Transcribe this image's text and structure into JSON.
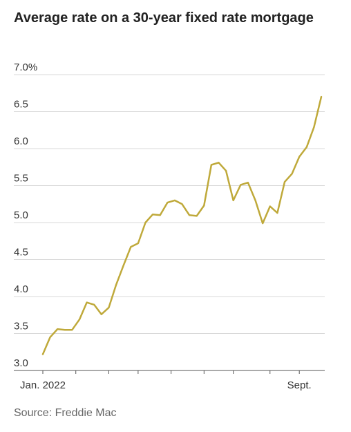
{
  "chart_data": {
    "type": "line",
    "title": "Average rate on a 30-year fixed rate mortgage",
    "source": "Source: Freddie Mac",
    "ylim": [
      3.0,
      7.0
    ],
    "y_ticks": [
      3.0,
      3.5,
      4.0,
      4.5,
      5.0,
      5.5,
      6.0,
      6.5,
      7.0
    ],
    "y_tick_labels": [
      "3.0",
      "3.5",
      "4.0",
      "4.5",
      "5.0",
      "5.5",
      "6.0",
      "6.5",
      "7.0%"
    ],
    "x_tick_labels": [
      {
        "week": 0,
        "label": "Jan. 2022"
      },
      {
        "week": 35,
        "label": "Sept."
      }
    ],
    "x_minor_ticks": [
      0,
      4.5,
      9,
      13,
      17.5,
      22,
      26,
      31,
      35
    ],
    "grid": true,
    "line_color": "#bfa93a",
    "series": [
      {
        "values": [
          3.22,
          3.45,
          3.56,
          3.55,
          3.55,
          3.69,
          3.92,
          3.89,
          3.76,
          3.85,
          4.16,
          4.42,
          4.67,
          4.72,
          5.0,
          5.11,
          5.1,
          5.27,
          5.3,
          5.25,
          5.1,
          5.09,
          5.23,
          5.78,
          5.81,
          5.7,
          5.3,
          5.51,
          5.54,
          5.3,
          4.99,
          5.22,
          5.13,
          5.55,
          5.66,
          5.89,
          6.02,
          6.29,
          6.7
        ]
      }
    ]
  }
}
